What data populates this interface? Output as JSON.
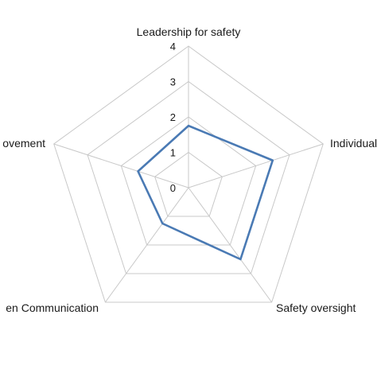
{
  "chart_data": {
    "type": "radar",
    "categories": [
      "Leadership for safety",
      "Individual",
      "Safety oversight",
      "en Communication",
      "ovement"
    ],
    "series": [
      {
        "values": [
          1.75,
          2.5,
          2.5,
          1.25,
          1.5
        ],
        "color": "#4a7ab4"
      }
    ],
    "rlim": [
      0,
      4
    ],
    "ticks": [
      "0",
      "1",
      "2",
      "3",
      "4"
    ],
    "grid": true,
    "gridColor": "#c8c8c8"
  }
}
